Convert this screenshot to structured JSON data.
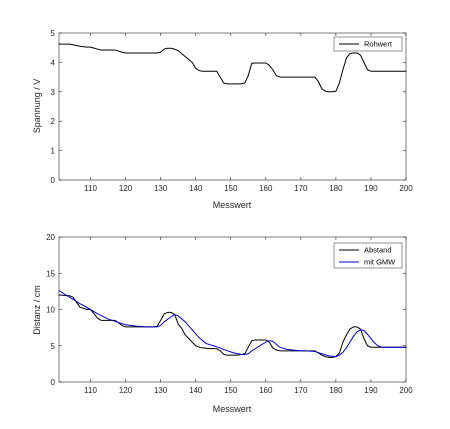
{
  "chart_data": [
    {
      "type": "line",
      "xlabel": "Messwert",
      "ylabel": "Spannung / V",
      "xlim": [
        101,
        200
      ],
      "ylim": [
        0,
        5
      ],
      "xticks": [
        110,
        120,
        130,
        140,
        150,
        160,
        170,
        180,
        190,
        200
      ],
      "yticks": [
        0,
        1,
        2,
        3,
        4,
        5
      ],
      "grid": false,
      "legend_position": "top-right",
      "series": [
        {
          "name": "Rohwert",
          "color": "#000000",
          "x": [
            101,
            104,
            105,
            107,
            109,
            110,
            112,
            113,
            117,
            119,
            120,
            122,
            124,
            126,
            128,
            129,
            130,
            131,
            132,
            133,
            134,
            135,
            136,
            137,
            138,
            139,
            140,
            141,
            142,
            144,
            146,
            147,
            148,
            149,
            150,
            151,
            152,
            153,
            154,
            155,
            156,
            157,
            158,
            159,
            160,
            161,
            162,
            163,
            164,
            166,
            168,
            170,
            172,
            174,
            175,
            176,
            177,
            178,
            179,
            180,
            181,
            182,
            183,
            184,
            185,
            186,
            187,
            188,
            189,
            190,
            192,
            195,
            200
          ],
          "y": [
            4.62,
            4.62,
            4.6,
            4.55,
            4.52,
            4.52,
            4.45,
            4.42,
            4.42,
            4.35,
            4.32,
            4.32,
            4.32,
            4.32,
            4.32,
            4.32,
            4.35,
            4.45,
            4.48,
            4.48,
            4.45,
            4.4,
            4.3,
            4.2,
            4.1,
            4.0,
            3.8,
            3.72,
            3.7,
            3.7,
            3.7,
            3.5,
            3.3,
            3.27,
            3.27,
            3.27,
            3.27,
            3.27,
            3.3,
            3.55,
            3.97,
            3.98,
            3.98,
            3.98,
            3.98,
            3.9,
            3.75,
            3.55,
            3.5,
            3.5,
            3.5,
            3.5,
            3.5,
            3.5,
            3.35,
            3.1,
            3.02,
            3.0,
            3.0,
            3.02,
            3.3,
            3.75,
            4.15,
            4.3,
            4.32,
            4.32,
            4.25,
            4.0,
            3.75,
            3.7,
            3.7,
            3.7,
            3.7
          ]
        }
      ]
    },
    {
      "type": "line",
      "xlabel": "Messwert",
      "ylabel": "Distanz / cm",
      "xlim": [
        101,
        200
      ],
      "ylim": [
        0,
        20
      ],
      "xticks": [
        110,
        120,
        130,
        140,
        150,
        160,
        170,
        180,
        190,
        200
      ],
      "yticks": [
        0,
        5,
        10,
        15,
        20
      ],
      "grid": false,
      "legend_position": "top-right",
      "series": [
        {
          "name": "Abstand",
          "color": "#000000",
          "x": [
            101,
            104,
            105,
            107,
            109,
            110,
            112,
            113,
            117,
            119,
            120,
            122,
            124,
            126,
            128,
            129,
            130,
            131,
            132,
            133,
            134,
            135,
            136,
            137,
            138,
            139,
            140,
            141,
            142,
            144,
            146,
            147,
            148,
            149,
            150,
            151,
            152,
            153,
            154,
            155,
            156,
            157,
            158,
            159,
            160,
            161,
            162,
            163,
            164,
            166,
            168,
            170,
            172,
            174,
            175,
            176,
            177,
            178,
            179,
            180,
            181,
            182,
            183,
            184,
            185,
            186,
            187,
            188,
            189,
            190,
            192,
            195,
            200
          ],
          "y": [
            12.0,
            11.9,
            11.7,
            10.3,
            10.0,
            10.0,
            8.8,
            8.5,
            8.5,
            7.8,
            7.6,
            7.6,
            7.6,
            7.6,
            7.6,
            7.7,
            8.5,
            9.4,
            9.6,
            9.6,
            9.3,
            8.0,
            7.4,
            6.5,
            6.0,
            5.5,
            5.0,
            4.8,
            4.7,
            4.6,
            4.6,
            4.3,
            3.8,
            3.7,
            3.7,
            3.7,
            3.7,
            3.8,
            3.9,
            4.8,
            5.7,
            5.8,
            5.8,
            5.8,
            5.8,
            5.5,
            4.7,
            4.4,
            4.3,
            4.3,
            4.3,
            4.3,
            4.3,
            4.3,
            4.0,
            3.7,
            3.5,
            3.4,
            3.4,
            3.5,
            4.0,
            5.5,
            6.5,
            7.3,
            7.6,
            7.6,
            7.3,
            6.0,
            5.0,
            4.8,
            4.8,
            4.8,
            4.8
          ]
        },
        {
          "name": "mit GMW",
          "color": "#0000cc",
          "x": [
            101,
            103,
            105,
            107,
            110,
            112,
            115,
            118,
            120,
            123,
            126,
            129,
            130,
            131,
            133,
            134,
            135,
            137,
            139,
            141,
            143,
            145,
            147,
            149,
            151,
            153,
            154,
            155,
            156,
            158,
            160,
            161,
            162,
            163,
            164,
            166,
            168,
            170,
            172,
            174,
            176,
            178,
            180,
            181,
            182,
            183,
            184,
            185,
            186,
            187,
            188,
            189,
            190,
            191,
            192,
            193,
            195,
            200
          ],
          "y": [
            12.6,
            12.0,
            11.4,
            10.8,
            10.0,
            9.4,
            8.7,
            8.2,
            7.9,
            7.7,
            7.6,
            7.6,
            7.8,
            8.3,
            9.0,
            9.3,
            9.1,
            8.3,
            7.2,
            6.1,
            5.3,
            5.0,
            4.7,
            4.3,
            4.0,
            3.8,
            3.8,
            3.9,
            4.3,
            4.9,
            5.5,
            5.7,
            5.6,
            5.2,
            4.8,
            4.5,
            4.4,
            4.3,
            4.3,
            4.2,
            3.9,
            3.6,
            3.5,
            3.7,
            4.1,
            4.7,
            5.5,
            6.3,
            6.9,
            7.2,
            7.1,
            6.6,
            6.0,
            5.4,
            5.0,
            4.8,
            4.8,
            4.8
          ]
        }
      ]
    }
  ]
}
